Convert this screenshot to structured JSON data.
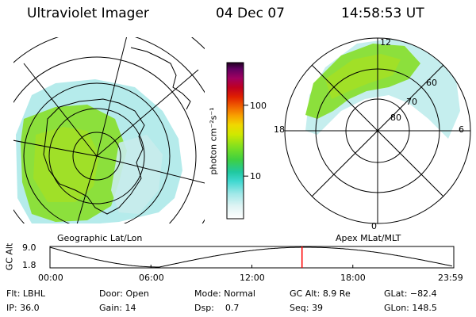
{
  "header": {
    "instrument": "Ultraviolet Imager",
    "date": "04 Dec 07",
    "time": "14:58:53 UT"
  },
  "left_panel": {
    "caption": "Geographic Lat/Lon"
  },
  "right_panel": {
    "caption": "Apex MLat/MLT",
    "mlt_labels": {
      "top": "12",
      "left": "18",
      "right": "6",
      "bottom": "0"
    },
    "lat_labels": [
      "60",
      "70",
      "80"
    ]
  },
  "colorbar": {
    "unit_label": "photon cm⁻²s⁻¹",
    "ticks": [
      {
        "label": "100",
        "value": 100
      },
      {
        "label": "10",
        "value": 10
      }
    ],
    "range": [
      2.5,
      400
    ],
    "scale": "log"
  },
  "altitude_plot": {
    "ylabel": "GC Alt",
    "ytick_top": "9.0",
    "ytick_bottom": "1.8",
    "xticks": [
      "00:00",
      "06:00",
      "12:00",
      "18:00",
      "23:59"
    ],
    "current_time_hours": 14.98,
    "marker_color": "#ff0000"
  },
  "status": {
    "flt_label": "Flt:",
    "flt_value": "LBHL",
    "ip_label": "IP:",
    "ip_value": "36.0",
    "door_label": "Door:",
    "door_value": "Open",
    "gain_label": "Gain:",
    "gain_value": "14",
    "mode_label": "Mode:",
    "mode_value": "Normal",
    "dsp_label": "Dsp:",
    "dsp_value": "0.7",
    "gcalt_label": "GC Alt:",
    "gcalt_value": "8.9 Re",
    "seq_label": "Seq:",
    "seq_value": "39",
    "glat_label": "GLat:",
    "glat_value": "−82.4",
    "glon_label": "GLon:",
    "glon_value": "148.5"
  }
}
